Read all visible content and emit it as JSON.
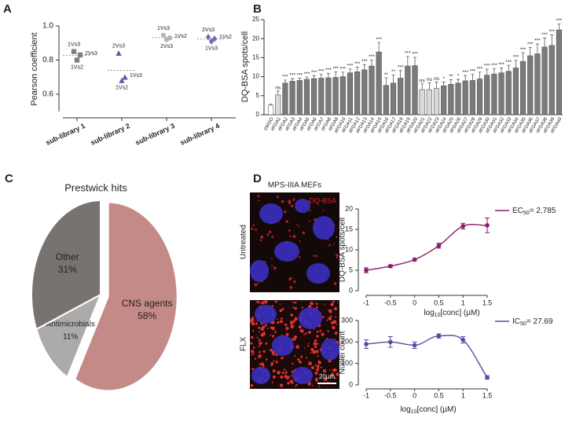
{
  "chart_data": [
    {
      "type": "scatter",
      "panel": "A",
      "ylabel": "Pearson coefficient",
      "categories": [
        "sub-library 1",
        "sub-library 2",
        "sub-library 3",
        "sub-library 4"
      ],
      "ylim": [
        0.5,
        1.0
      ],
      "yticks": [
        0.6,
        0.8,
        {
          "value": 1,
          "label": "1.0"
        }
      ],
      "series": [
        {
          "marker": "square",
          "color": "#7f7f7f",
          "labels": [
            "1Vs3",
            "2Vs3",
            "1Vs2"
          ],
          "values": [
            0.85,
            0.83,
            0.8
          ],
          "mean": 0.827
        },
        {
          "marker": "triangle",
          "color": "#5a5aa8",
          "labels": [
            "2Vs3",
            "1Vs3",
            "1Vs2"
          ],
          "values": [
            0.84,
            0.7,
            0.68
          ],
          "mean": 0.74
        },
        {
          "marker": "circle",
          "color": "#b5b5b5",
          "labels": [
            "1Vs3",
            "1Vs2",
            "2Vs3"
          ],
          "values": [
            0.945,
            0.93,
            0.92
          ],
          "mean": 0.932
        },
        {
          "marker": "diamond",
          "color": "#7b68b0",
          "labels": [
            "2Vs3",
            "1Vs2",
            "1Vs3"
          ],
          "values": [
            0.935,
            0.925,
            0.91
          ],
          "mean": 0.923
        }
      ]
    },
    {
      "type": "bar",
      "panel": "B",
      "ylabel": "DQ-BSA spots/cell",
      "categories": [
        "DMSO",
        "#FDA1",
        "#FDA2",
        "#FDA3",
        "#FDA4",
        "#FDA5",
        "#FDA6",
        "#FDA7",
        "#FDA8",
        "#FDA9",
        "#FDA10",
        "#FDA11",
        "#FDA12",
        "#FDA13",
        "#FDA14",
        "#FDA15",
        "#FDA16",
        "#FDA17",
        "#FDA18",
        "#FDA19",
        "#FDA20",
        "#FDA21",
        "#FDA22",
        "#FDA23",
        "#FDA24",
        "#FDA25",
        "#FDA26",
        "#FDA27",
        "#FDA28",
        "#FDA29",
        "#FDA30",
        "#FDA31",
        "#FDA32",
        "#FDA33",
        "#FDA34",
        "#FDA35",
        "#FDA36",
        "#FDA37",
        "#FDA38",
        "#FDA39",
        "#FDA40"
      ],
      "values": [
        2.5,
        5.2,
        8.3,
        8.8,
        9.0,
        9.3,
        9.5,
        9.6,
        9.7,
        9.8,
        10.0,
        11.0,
        11.3,
        11.8,
        12.8,
        16.5,
        7.7,
        8.3,
        9.6,
        12.8,
        12.9,
        6.6,
        6.6,
        6.9,
        7.6,
        8.0,
        8.3,
        8.9,
        9.0,
        9.4,
        10.4,
        10.7,
        11.0,
        11.4,
        12.3,
        14.0,
        15.5,
        16.0,
        17.8,
        18.2,
        22.3
      ],
      "errors": [
        0.3,
        1.0,
        0.8,
        0.7,
        0.6,
        0.6,
        0.8,
        1.0,
        1.2,
        1.5,
        1.2,
        1.0,
        1.2,
        1.4,
        1.6,
        2.5,
        2.0,
        2.2,
        2.0,
        2.5,
        2.2,
        1.5,
        1.8,
        1.7,
        1.0,
        1.2,
        1.0,
        1.4,
        1.6,
        1.8,
        1.6,
        1.4,
        1.3,
        1.6,
        2.0,
        2.3,
        2.2,
        2.6,
        2.4,
        2.8,
        1.6
      ],
      "significance": [
        null,
        "ns",
        "***",
        "***",
        "***",
        "***",
        "***",
        "***",
        "***",
        "***",
        "***",
        "***",
        "***",
        "***",
        "***",
        "***",
        "**",
        "**",
        "***",
        "***",
        "***",
        "ns",
        "ns",
        "ns",
        "*",
        "**",
        "*",
        "***",
        "***",
        "***",
        "***",
        "***",
        "***",
        "***",
        "***",
        "***",
        "***",
        "***",
        "***",
        "***",
        "***"
      ],
      "colors": [
        "#ffffff",
        "#d9d9d9",
        "#7a7a7a",
        "#7a7a7a",
        "#7a7a7a",
        "#7a7a7a",
        "#7a7a7a",
        "#7a7a7a",
        "#7a7a7a",
        "#7a7a7a",
        "#7a7a7a",
        "#7a7a7a",
        "#7a7a7a",
        "#7a7a7a",
        "#7a7a7a",
        "#7a7a7a",
        "#7a7a7a",
        "#7a7a7a",
        "#7a7a7a",
        "#7a7a7a",
        "#7a7a7a",
        "#d9d9d9",
        "#d9d9d9",
        "#d9d9d9",
        "#7a7a7a",
        "#7a7a7a",
        "#7a7a7a",
        "#7a7a7a",
        "#7a7a7a",
        "#7a7a7a",
        "#7a7a7a",
        "#7a7a7a",
        "#7a7a7a",
        "#7a7a7a",
        "#7a7a7a",
        "#7a7a7a",
        "#7a7a7a",
        "#7a7a7a",
        "#7a7a7a",
        "#7a7a7a",
        "#7a7a7a"
      ],
      "ylim": [
        0,
        25
      ],
      "yticks": [
        0,
        5,
        10,
        15,
        20,
        25
      ]
    },
    {
      "type": "pie",
      "panel": "C",
      "title": "Prestwick hits",
      "categories": [
        "CNS agents",
        "Antimicrobials",
        "Other"
      ],
      "values": [
        58,
        11,
        31
      ],
      "value_labels": [
        "58%",
        "11%",
        "31%"
      ],
      "colors": [
        "#c48a88",
        "#adabaa",
        "#787371"
      ],
      "exploded": "CNS agents"
    },
    {
      "type": "line",
      "ylabel": "DQ-BSA spots/cell",
      "xlabel": {
        "text": "log",
        "sub": "10",
        "tail": "[conc] (µM)"
      },
      "legend": {
        "text": "EC",
        "sub": "50",
        "tail": "= 2,785"
      },
      "color": "#8b1a6b",
      "x": [
        -1,
        -0.5,
        0,
        0.5,
        1,
        1.5
      ],
      "values": [
        5.0,
        6.0,
        7.6,
        11.0,
        15.8,
        16.0
      ],
      "errors": [
        0.6,
        0.3,
        0.3,
        0.6,
        0.7,
        1.8
      ],
      "xlim": [
        -1,
        1.5
      ],
      "xticks": [
        -1,
        -0.5,
        0,
        0.5,
        1,
        1.5
      ],
      "ylim": [
        0,
        20
      ],
      "yticks": [
        0,
        5,
        10,
        15,
        20
      ]
    },
    {
      "type": "line",
      "ylabel": "Nuclei count",
      "xlabel": {
        "text": "log",
        "sub": "10",
        "tail": "[conc] (µM)"
      },
      "legend": {
        "text": "IC",
        "sub": "50",
        "tail": "= 27.69"
      },
      "color": "#5b4aa0",
      "x": [
        -1,
        -0.5,
        0,
        0.5,
        1,
        1.5
      ],
      "values": [
        190,
        200,
        185,
        228,
        210,
        35
      ],
      "errors": [
        20,
        25,
        15,
        10,
        15,
        8
      ],
      "xlim": [
        -1,
        1.5
      ],
      "xticks": [
        -1,
        -0.5,
        0,
        0.5,
        1,
        1.5
      ],
      "ylim": [
        0,
        300
      ],
      "yticks": [
        0,
        100,
        200,
        300
      ]
    }
  ],
  "images": {
    "panel": "D",
    "title": "MPS-IIIA MEFs",
    "stain": "DQ-BSA",
    "conditions": [
      "Untreated",
      "FLX"
    ],
    "scale_bar": "20µm"
  }
}
